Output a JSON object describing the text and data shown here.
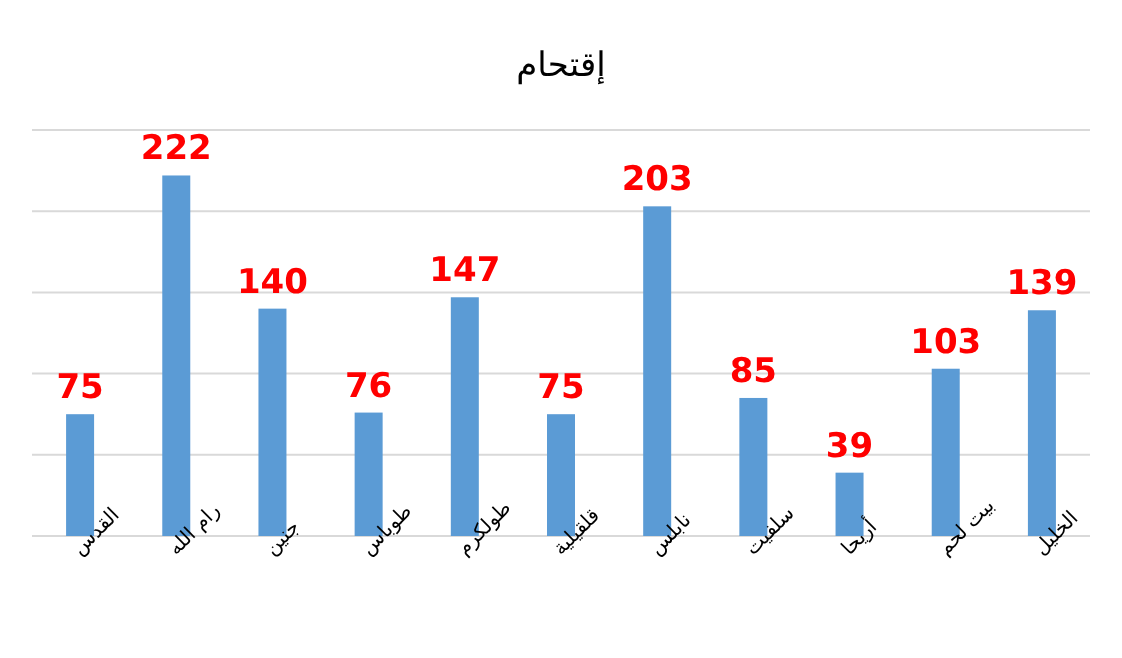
{
  "chart_data": {
    "type": "bar",
    "title": "إقتحام",
    "categories": [
      "القدس",
      "رام الله",
      "جنين",
      "طوباس",
      "طولكرم",
      "قلقيلية",
      "نابلس",
      "سلفيت",
      "أريحا",
      "بيت لحم",
      "الخليل"
    ],
    "values": [
      75,
      222,
      140,
      76,
      147,
      75,
      203,
      85,
      39,
      103,
      139
    ],
    "color": "#5b9bd5",
    "ylim": [
      0,
      250
    ],
    "yticks": [
      {
        "value": 0,
        "label": null
      },
      {
        "value": 50,
        "label": null
      },
      {
        "value": 100,
        "label": null
      },
      {
        "value": 150,
        "label": null
      },
      {
        "value": 200,
        "label": null
      },
      {
        "value": 250,
        "label": null
      }
    ],
    "grid": "y",
    "data_labels": true
  }
}
